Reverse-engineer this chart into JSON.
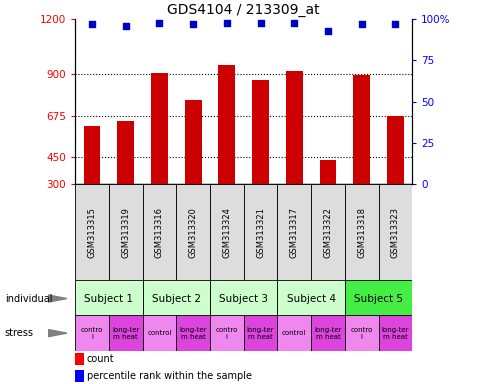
{
  "title": "GDS4104 / 213309_at",
  "samples": [
    "GSM313315",
    "GSM313319",
    "GSM313316",
    "GSM313320",
    "GSM313324",
    "GSM313321",
    "GSM313317",
    "GSM313322",
    "GSM313318",
    "GSM313323"
  ],
  "counts": [
    620,
    645,
    905,
    760,
    950,
    870,
    920,
    430,
    895,
    670
  ],
  "percentile_ranks": [
    97,
    96,
    98,
    97,
    98,
    98,
    98,
    93,
    97,
    97
  ],
  "subjects": [
    {
      "label": "Subject 1",
      "span": [
        0,
        2
      ],
      "color": "#ccffcc"
    },
    {
      "label": "Subject 2",
      "span": [
        2,
        4
      ],
      "color": "#ccffcc"
    },
    {
      "label": "Subject 3",
      "span": [
        4,
        6
      ],
      "color": "#ccffcc"
    },
    {
      "label": "Subject 4",
      "span": [
        6,
        8
      ],
      "color": "#ccffcc"
    },
    {
      "label": "Subject 5",
      "span": [
        8,
        10
      ],
      "color": "#44ee44"
    }
  ],
  "stress": [
    {
      "label": "contro\nl",
      "span": [
        0,
        1
      ],
      "color": "#ee88ee"
    },
    {
      "label": "long-ter\nm heat",
      "span": [
        1,
        2
      ],
      "color": "#dd44dd"
    },
    {
      "label": "control",
      "span": [
        2,
        3
      ],
      "color": "#ee88ee"
    },
    {
      "label": "long-ter\nm heat",
      "span": [
        3,
        4
      ],
      "color": "#dd44dd"
    },
    {
      "label": "contro\nl",
      "span": [
        4,
        5
      ],
      "color": "#ee88ee"
    },
    {
      "label": "long-ter\nm heat",
      "span": [
        5,
        6
      ],
      "color": "#dd44dd"
    },
    {
      "label": "control",
      "span": [
        6,
        7
      ],
      "color": "#ee88ee"
    },
    {
      "label": "long-ter\nm heat",
      "span": [
        7,
        8
      ],
      "color": "#dd44dd"
    },
    {
      "label": "contro\nl",
      "span": [
        8,
        9
      ],
      "color": "#ee88ee"
    },
    {
      "label": "long-ter\nm heat",
      "span": [
        9,
        10
      ],
      "color": "#dd44dd"
    }
  ],
  "ylim_left": [
    300,
    1200
  ],
  "ylim_right": [
    0,
    100
  ],
  "yticks_left": [
    300,
    450,
    675,
    900,
    1200
  ],
  "yticks_right": [
    0,
    25,
    50,
    75,
    100
  ],
  "bar_color": "#cc0000",
  "dot_color": "#0000cc",
  "bar_width": 0.5,
  "gsm_bg_color": "#dddddd",
  "left_label_color": "#555555"
}
